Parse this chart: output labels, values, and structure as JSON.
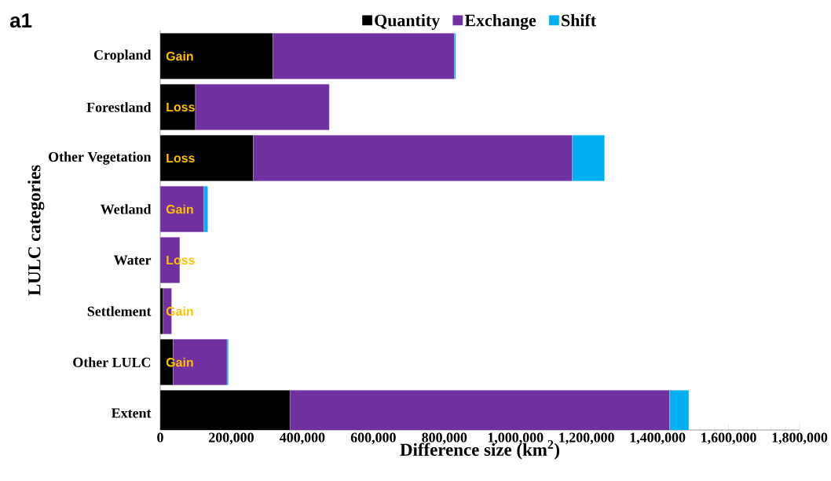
{
  "chart_data": {
    "type": "bar",
    "orientation": "horizontal",
    "stacked": true,
    "xlabel": "Difference size  (km$^{2}$)",
    "ylabel": "LULC categories",
    "categories": [
      "Cropland",
      "Forestland",
      "Other Vegetation",
      "Wetland",
      "Water",
      "Settlement",
      "Other LULC",
      "Extent"
    ],
    "series": [
      {
        "name": "Quantity",
        "color": "#000000",
        "values": [
          317000,
          99000,
          262000,
          0,
          0,
          8000,
          36000,
          365000
        ]
      },
      {
        "name": "Exchange",
        "color": "#7030a0",
        "values": [
          511000,
          377000,
          898000,
          123000,
          55000,
          24000,
          152000,
          1069000
        ]
      },
      {
        "name": "Shift",
        "color": "#00b0f0",
        "values": [
          4000,
          0,
          91000,
          11000,
          0,
          0,
          4000,
          54000
        ]
      }
    ],
    "xlim": [
      0,
      1800000
    ],
    "xticks": [
      0,
      {
        "value": 200000,
        "label": "200,000"
      },
      {
        "value": 400000,
        "label": "400,000"
      },
      {
        "value": 600000,
        "label": "600,000"
      },
      {
        "value": 800000,
        "label": "800,000"
      },
      {
        "value": 1000000,
        "label": "1,000,000"
      },
      {
        "value": 1200000,
        "label": "1,200,000"
      },
      {
        "value": 1400000,
        "label": "1,400,000"
      },
      {
        "value": 1600000,
        "label": "1,600,000"
      },
      {
        "value": 1800000,
        "label": "1,800,000"
      }
    ],
    "legend": "top",
    "grid": false,
    "annotations": [
      "a1",
      "Gain",
      "Loss",
      "Loss",
      "Gain",
      "Loss",
      "Gain",
      "Gain"
    ]
  }
}
